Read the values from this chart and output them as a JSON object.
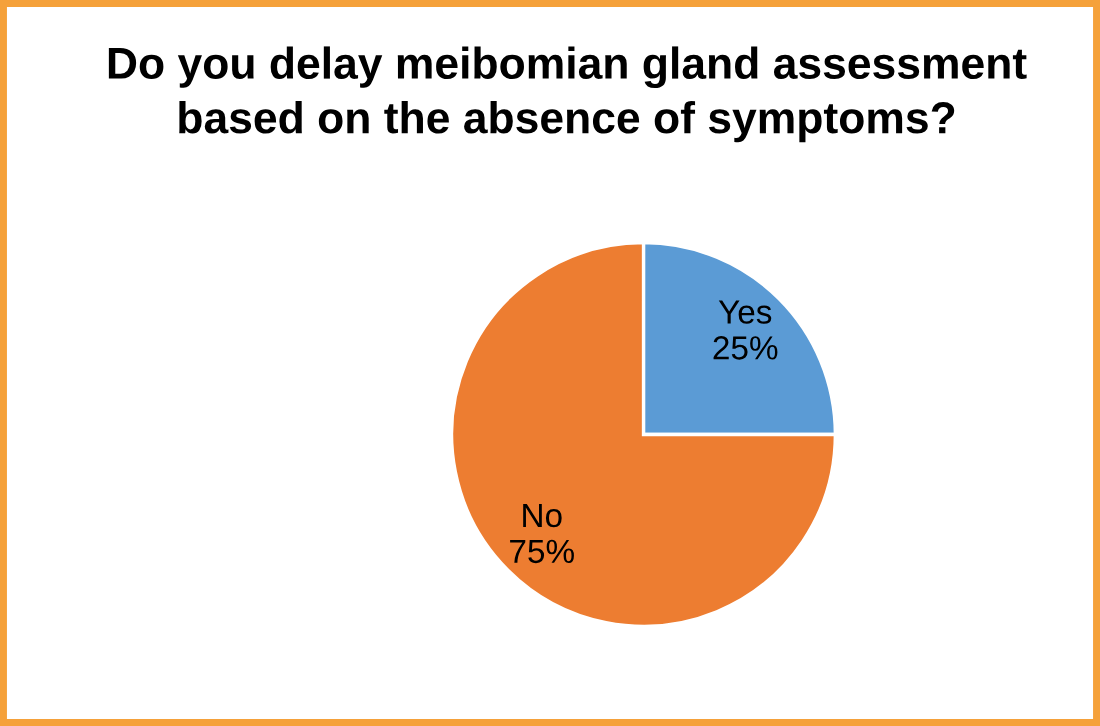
{
  "chart_data": {
    "type": "pie",
    "title": "Do you delay meibomian gland assessment\nbased on the absence of symptoms?",
    "categories": [
      "Yes",
      "No"
    ],
    "values": [
      25,
      75
    ],
    "value_labels": [
      "25%",
      "75%"
    ],
    "colors": [
      "#5b9bd5",
      "#ed7d31"
    ]
  }
}
